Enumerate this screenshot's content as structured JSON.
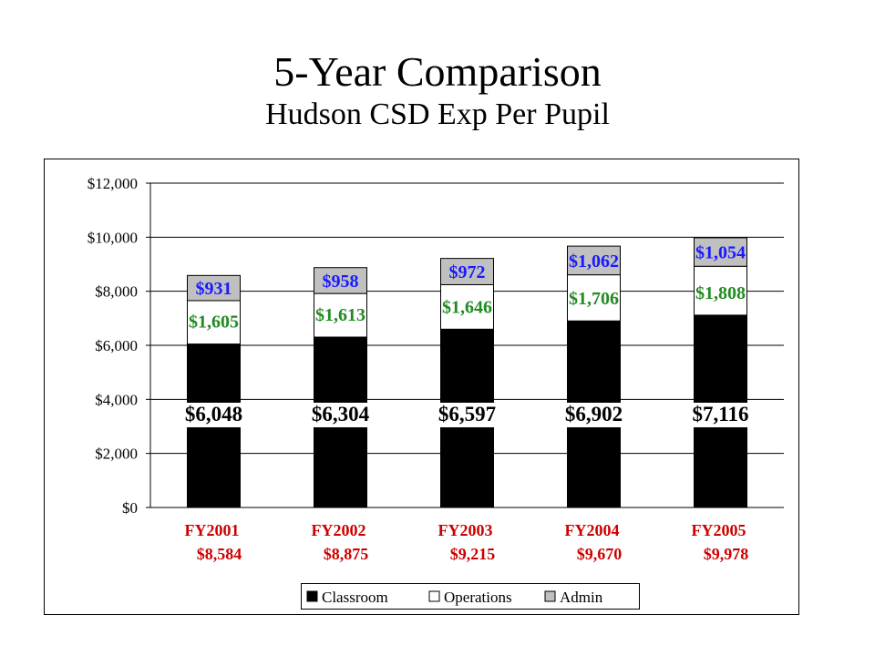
{
  "title": "5-Year Comparison",
  "subtitle": "Hudson CSD Exp Per Pupil",
  "chart_data": {
    "type": "bar",
    "stacked": true,
    "categories": [
      "FY2001",
      "FY2002",
      "FY2003",
      "FY2004",
      "FY2005"
    ],
    "category_totals": [
      "$8,584",
      "$8,875",
      "$9,215",
      "$9,670",
      "$9,978"
    ],
    "series": [
      {
        "name": "Classroom",
        "values": [
          6048,
          6304,
          6597,
          6902,
          7116
        ],
        "labels": [
          "$6,048",
          "$6,304",
          "$6,597",
          "$6,902",
          "$7,116"
        ],
        "color": "#000000",
        "label_color": "#000000"
      },
      {
        "name": "Operations",
        "values": [
          1605,
          1613,
          1646,
          1706,
          1808
        ],
        "labels": [
          "$1,605",
          "$1,613",
          "$1,646",
          "$1,706",
          "$1,808"
        ],
        "color": "#ffffff",
        "label_color": "#228b22"
      },
      {
        "name": "Admin",
        "values": [
          931,
          958,
          972,
          1062,
          1054
        ],
        "labels": [
          "$931",
          "$958",
          "$972",
          "$1,062",
          "$1,054"
        ],
        "color": "#c0c0c0",
        "label_color": "#1a1aff"
      }
    ],
    "y_ticks": [
      "$0",
      "$2,000",
      "$4,000",
      "$6,000",
      "$8,000",
      "$10,000",
      "$12,000"
    ],
    "ylim": [
      0,
      12000
    ],
    "y_tick_step": 2000,
    "grid": true,
    "legend_position": "bottom-right",
    "category_label_color": "#cc0000"
  }
}
